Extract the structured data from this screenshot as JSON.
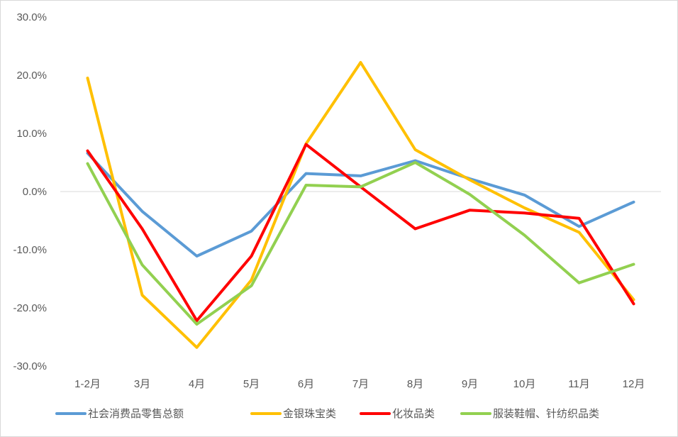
{
  "chart_data": {
    "type": "line",
    "title": "",
    "xlabel": "",
    "ylabel": "",
    "categories": [
      "1-2月",
      "3月",
      "4月",
      "5月",
      "6月",
      "7月",
      "8月",
      "9月",
      "10月",
      "11月",
      "12月"
    ],
    "ylim": [
      -30,
      30
    ],
    "yticks": [
      {
        "value": 30,
        "label": "30.0%"
      },
      {
        "value": 20,
        "label": "20.0%"
      },
      {
        "value": 10,
        "label": "10.0%"
      },
      {
        "value": 0,
        "label": "0.0%"
      },
      {
        "value": -10,
        "label": "-10.0%"
      },
      {
        "value": -20,
        "label": "-20.0%"
      },
      {
        "value": -30,
        "label": "-30.0%"
      }
    ],
    "grid": false,
    "legend_position": "bottom",
    "series": [
      {
        "name": "社会消费品零售总额",
        "color": "#5b9bd5",
        "values": [
          6.6,
          -3.4,
          -11.1,
          -6.8,
          3.1,
          2.7,
          5.3,
          2.2,
          -0.6,
          -6.0,
          -1.8
        ]
      },
      {
        "name": "金银珠宝类",
        "color": "#ffc000",
        "values": [
          19.5,
          -17.8,
          -26.8,
          -15.2,
          8.2,
          22.2,
          7.2,
          2.0,
          -2.8,
          -7.0,
          -18.6
        ]
      },
      {
        "name": "化妆品类",
        "color": "#ff0000",
        "values": [
          7.0,
          -6.4,
          -22.2,
          -11.1,
          8.1,
          0.8,
          -6.4,
          -3.2,
          -3.7,
          -4.6,
          -19.3
        ]
      },
      {
        "name": "服装鞋帽、针纺织品类",
        "color": "#92d050",
        "values": [
          4.8,
          -12.6,
          -22.8,
          -16.2,
          1.1,
          0.8,
          5.0,
          -0.5,
          -7.5,
          -15.7,
          -12.5
        ]
      }
    ]
  }
}
